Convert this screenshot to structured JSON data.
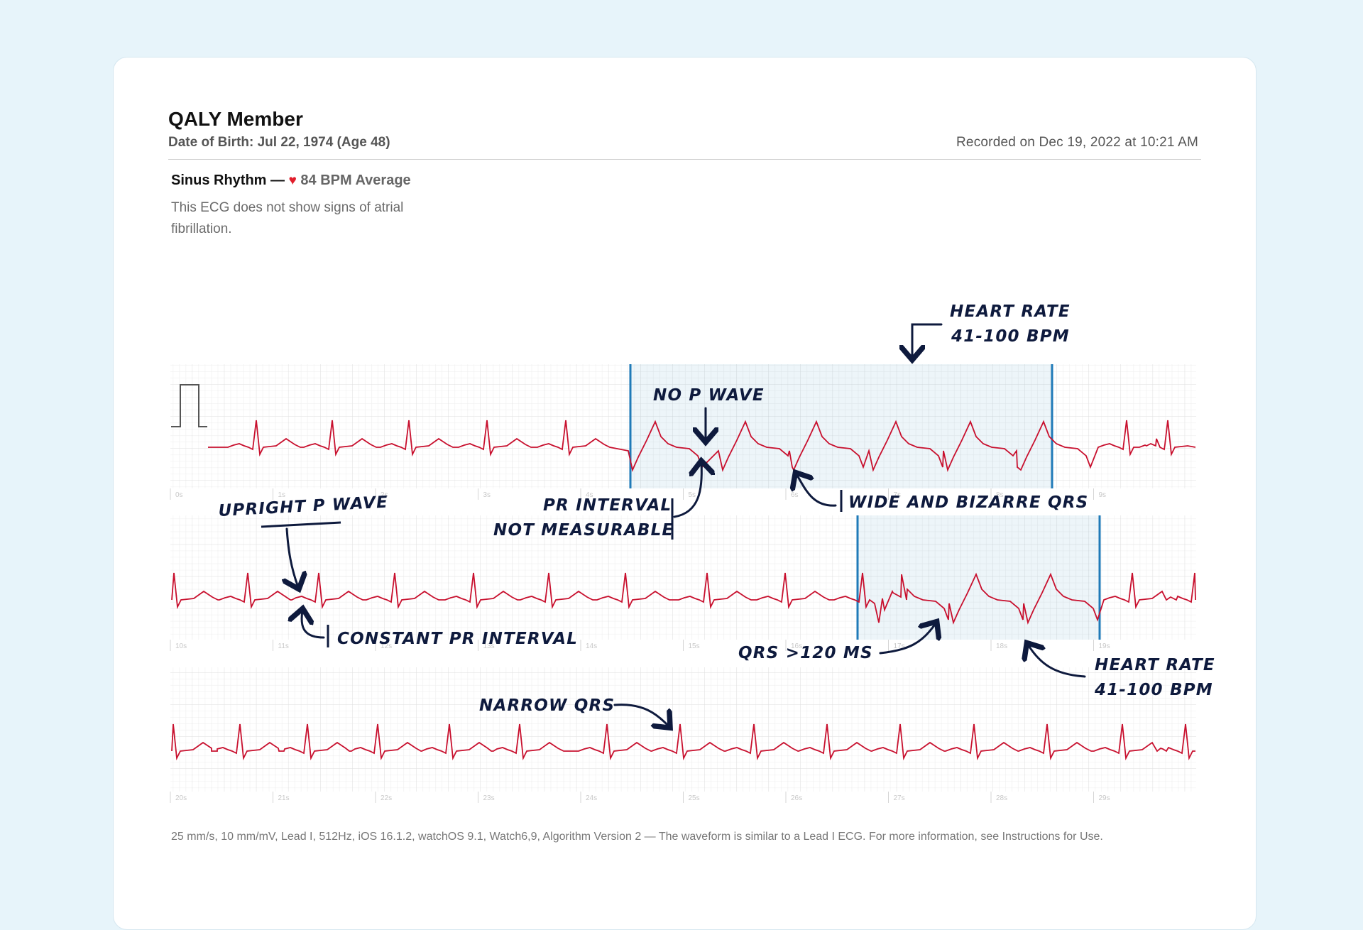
{
  "patient": {
    "name": "QALY Member",
    "dob": "Date of Birth: Jul 22, 1974 (Age 48)",
    "recorded": "Recorded on Dec 19, 2022 at 10:21 AM"
  },
  "result": {
    "rhythm": "Sinus Rhythm —",
    "heart_glyph": "♥",
    "average": "84 BPM Average",
    "description": "This ECG does not show signs of atrial fibrillation."
  },
  "strips": [
    {
      "ticks": [
        "0s",
        "1s",
        "2s",
        "3s",
        "4s",
        "5s",
        "6s",
        "7s",
        "8s",
        "9s"
      ]
    },
    {
      "ticks": [
        "10s",
        "11s",
        "12s",
        "13s",
        "14s",
        "15s",
        "16s",
        "17s",
        "18s",
        "19s"
      ]
    },
    {
      "ticks": [
        "20s",
        "21s",
        "22s",
        "23s",
        "24s",
        "25s",
        "26s",
        "27s",
        "28s",
        "29s"
      ]
    }
  ],
  "annotations": {
    "heart_rate_1": [
      "HEART RATE",
      "41-100 BPM"
    ],
    "no_p_wave": "NO P WAVE",
    "pr_interval": [
      "PR INTERVAL",
      "NOT MEASURABLE"
    ],
    "wide_qrs": "WIDE AND BIZARRE QRS",
    "upright_p": "UPRIGHT P WAVE",
    "constant_pr": "CONSTANT PR INTERVAL",
    "qrs_120": "QRS >120 MS",
    "heart_rate_2": [
      "HEART RATE",
      "41-100 BPM"
    ],
    "narrow_qrs": "NARROW QRS"
  },
  "footer": "25 mm/s, 10 mm/mV, Lead I, 512Hz, iOS 16.1.2, watchOS 9.1, Watch6,9, Algorithm Version 2 — The waveform is similar to a Lead I ECG. For more information, see Instructions for Use.",
  "colors": {
    "trace": "#c8102e",
    "highlight": "#1f7ab8",
    "ink": "#0e1a3d"
  }
}
